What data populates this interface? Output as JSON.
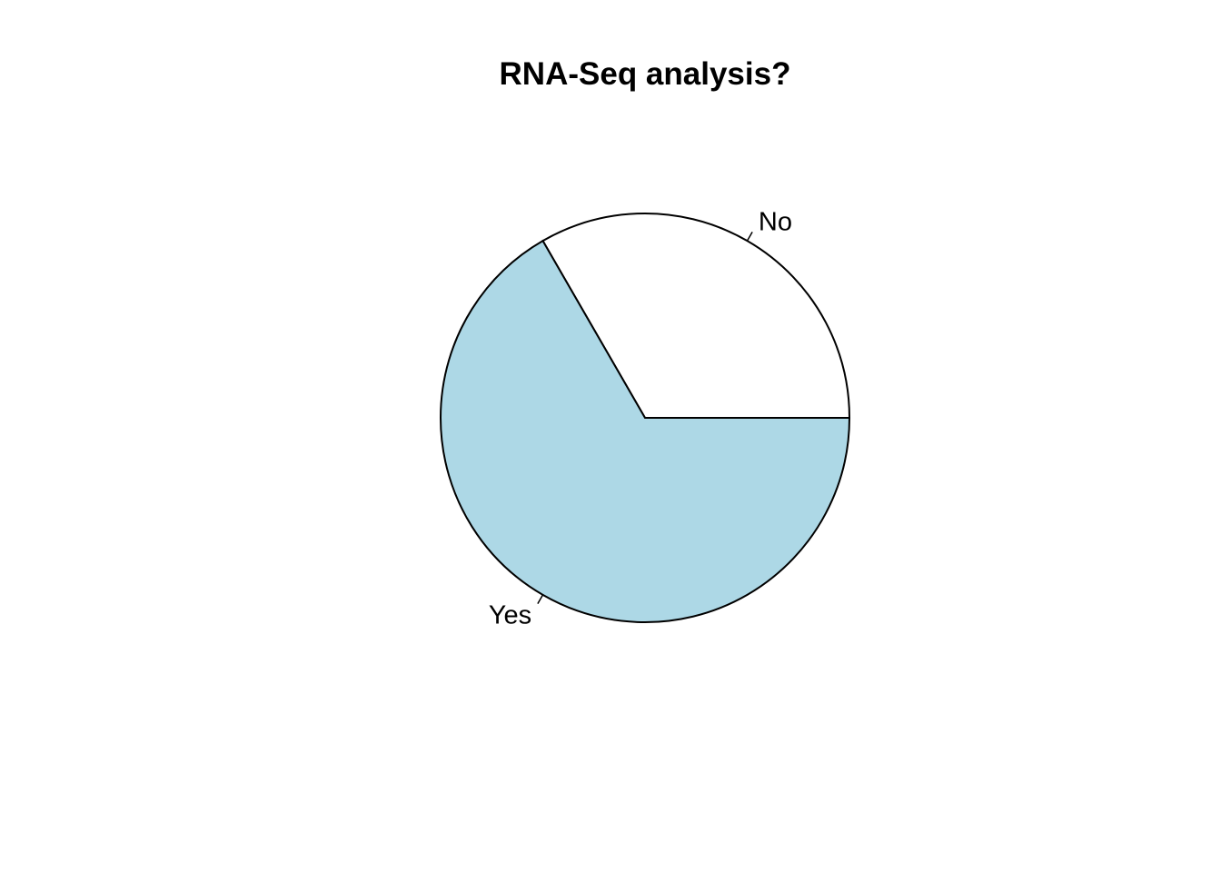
{
  "chart_data": {
    "type": "pie",
    "title": "RNA-Seq analysis?",
    "categories": [
      "No",
      "Yes"
    ],
    "values": [
      1,
      2
    ],
    "colors": [
      "#ffffff",
      "#add8e6"
    ],
    "start_angle_deg": 0,
    "direction": "counterclockwise",
    "border_color": "#000000",
    "legend": "none"
  }
}
